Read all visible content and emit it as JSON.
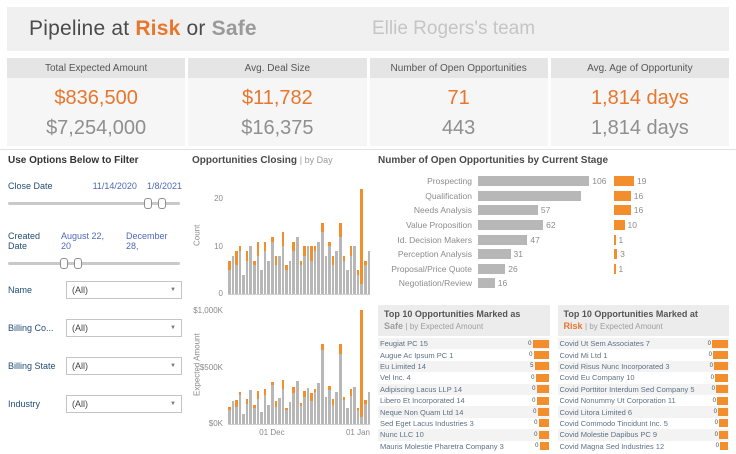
{
  "header": {
    "title_prefix": "Pipeline at ",
    "risk_word": "Risk",
    "connector": " or ",
    "safe_word": "Safe",
    "team_name": "Ellie Rogers's team"
  },
  "kpis": [
    {
      "title": "Total Expected Amount",
      "primary": "$836,500",
      "secondary": "$7,254,000"
    },
    {
      "title": "Avg. Deal Size",
      "primary": "$11,782",
      "secondary": "$16,375"
    },
    {
      "title": "Number of Open Opportunities",
      "primary": "71",
      "secondary": "443"
    },
    {
      "title": "Avg. Age of Opportunity",
      "primary": "1,814 days",
      "secondary": "1,814 days"
    }
  ],
  "filters": {
    "panel_title": "Use Options Below to Filter",
    "close_date": {
      "label": "Close Date",
      "start": "11/14/2020",
      "end": "1/8/2021",
      "handle_positions": [
        78,
        86
      ]
    },
    "created_date": {
      "label": "Created Date",
      "start": "August 22, 20",
      "end": "December 28,",
      "handle_positions": [
        30,
        38
      ]
    },
    "dropdowns": [
      {
        "label": "Name",
        "value": "(All)"
      },
      {
        "label": "Billing Co...",
        "value": "(All)"
      },
      {
        "label": "Billing State",
        "value": "(All)"
      },
      {
        "label": "Industry",
        "value": "(All)"
      }
    ]
  },
  "icons": {
    "dropdown_caret": "▼"
  },
  "colors": {
    "risk_orange": "#E8762C",
    "bar_orange": "#F28E2B",
    "safe_gray": "#B7B7B7"
  },
  "chart_data": [
    {
      "id": "closing_count",
      "type": "bar",
      "title": "Opportunities Closing",
      "separator": "|",
      "subtitle": "by Day",
      "ylabel": "Count",
      "yticks": [
        "0",
        "10",
        "20"
      ],
      "ylim": [
        0,
        25
      ],
      "xticks": [
        "01 Dec",
        "01 Jan"
      ],
      "stacked": true,
      "legend": "off",
      "series": [
        {
          "name": "Safe",
          "color": "#B7B7B7",
          "values": [
            5,
            8,
            6,
            9,
            4,
            7,
            10,
            6,
            8,
            5,
            9,
            7,
            11,
            6,
            8,
            10,
            5,
            7,
            9,
            12,
            6,
            8,
            10,
            7,
            9,
            11,
            13,
            8,
            10,
            6,
            9,
            12,
            7,
            5,
            8,
            10,
            4,
            2,
            6,
            9
          ]
        },
        {
          "name": "At Risk",
          "color": "#F28E2B",
          "values": [
            2,
            0,
            3,
            1,
            0,
            2,
            0,
            1,
            3,
            0,
            2,
            0,
            1,
            2,
            0,
            3,
            1,
            0,
            2,
            0,
            1,
            2,
            0,
            3,
            1,
            0,
            2,
            0,
            1,
            2,
            0,
            3,
            1,
            0,
            2,
            0,
            1,
            20,
            1,
            0
          ]
        }
      ]
    },
    {
      "id": "closing_amount",
      "type": "bar",
      "ylabel": "Expected Amount",
      "yticks": [
        "$0K",
        "$500K",
        "$1,000K"
      ],
      "ylim": [
        0,
        1050
      ],
      "xticks": [
        "01 Dec",
        "01 Jan"
      ],
      "stacked": true,
      "units": "thousand dollars",
      "series": [
        {
          "name": "Safe",
          "color": "#B7B7B7",
          "values": [
            120,
            200,
            150,
            260,
            90,
            180,
            300,
            140,
            220,
            110,
            260,
            170,
            340,
            150,
            230,
            310,
            120,
            190,
            270,
            380,
            160,
            240,
            320,
            200,
            280,
            360,
            650,
            240,
            300,
            170,
            280,
            620,
            210,
            140,
            250,
            330,
            120,
            60,
            180,
            280
          ]
        },
        {
          "name": "At Risk",
          "color": "#F28E2B",
          "values": [
            30,
            0,
            60,
            20,
            0,
            40,
            0,
            25,
            70,
            0,
            45,
            0,
            30,
            50,
            0,
            80,
            20,
            0,
            60,
            0,
            25,
            55,
            0,
            70,
            30,
            0,
            60,
            0,
            35,
            50,
            0,
            90,
            30,
            0,
            60,
            0,
            25,
            950,
            30,
            0
          ]
        }
      ]
    },
    {
      "id": "stage",
      "type": "bar",
      "orientation": "horizontal",
      "title": "Number of Open Opportunities by Current Stage",
      "xmax": 112,
      "categories": [
        "Prospecting",
        "Qualification",
        "Needs Analysis",
        "Value Proposition",
        "Id. Decision Makers",
        "Perception Analysis",
        "Proposal/Price Quote",
        "Negotiation/Review"
      ],
      "series": [
        {
          "name": "Safe",
          "color": "#B7B7B7",
          "values": [
            106,
            98,
            57,
            62,
            47,
            31,
            26,
            16
          ],
          "labels": [
            "106",
            "",
            "57",
            "62",
            "47",
            "31",
            "26",
            "16"
          ]
        },
        {
          "name": "At Risk",
          "color": "#F28E2B",
          "values": [
            19,
            16,
            16,
            10,
            1,
            3,
            1,
            0
          ],
          "labels": [
            "19",
            "16",
            "16",
            "10",
            "1",
            "3",
            "1",
            ""
          ]
        }
      ]
    },
    {
      "id": "top_safe",
      "type": "table",
      "title_line1": "Top 10 Opportunities Marked as",
      "title_word": "Safe",
      "title_suffix": "| by Expected Amount",
      "rows": [
        {
          "name": "Feugiat PC 15",
          "bar": 16,
          "label": "0"
        },
        {
          "name": "Augue Ac Ipsum PC 1",
          "bar": 15,
          "label": "0"
        },
        {
          "name": "Eu Limited 14",
          "bar": 14,
          "label": "5"
        },
        {
          "name": "Vel Inc. 4",
          "bar": 13,
          "label": "0"
        },
        {
          "name": "Adipiscing Lacus LLP 14",
          "bar": 12,
          "label": "0"
        },
        {
          "name": "Libero Et Incorporated 14",
          "bar": 12,
          "label": "0"
        },
        {
          "name": "Neque Non Quam Ltd 14",
          "bar": 11,
          "label": "0"
        },
        {
          "name": "Sed Eget Lacus Industries 3",
          "bar": 10,
          "label": "0"
        },
        {
          "name": "Nunc LLC 10",
          "bar": 10,
          "label": "0"
        },
        {
          "name": "Mauris Molestie Pharetra Company 3",
          "bar": 9,
          "label": "0"
        }
      ]
    },
    {
      "id": "top_risk",
      "type": "table",
      "title_line1": "Top 10 Opportunities Marked at",
      "title_word": "Risk",
      "title_suffix": "| by Expected Amount",
      "rows": [
        {
          "name": "Covid Ut Sem Associates 7",
          "bar": 16,
          "label": "0"
        },
        {
          "name": "Covid Mi Ltd 1",
          "bar": 15,
          "label": "0"
        },
        {
          "name": "Covid Risus Nunc Incorporated 3",
          "bar": 14,
          "label": "0"
        },
        {
          "name": "Covid Eu Company 10",
          "bar": 13,
          "label": "0"
        },
        {
          "name": "Covid Porttitor Interdum Sed Company 5",
          "bar": 12,
          "label": "0"
        },
        {
          "name": "Covid Nonummy Ut Corporation 11",
          "bar": 11,
          "label": "0"
        },
        {
          "name": "Covid Litora Limited 6",
          "bar": 10,
          "label": "0"
        },
        {
          "name": "Covid Commodo Tincidunt Inc. 5",
          "bar": 9,
          "label": "0"
        },
        {
          "name": "Covid Molestie Dapibus PC 9",
          "bar": 9,
          "label": "0"
        },
        {
          "name": "Covid Magna Sed Industries 12",
          "bar": 8,
          "label": "0"
        }
      ]
    }
  ]
}
